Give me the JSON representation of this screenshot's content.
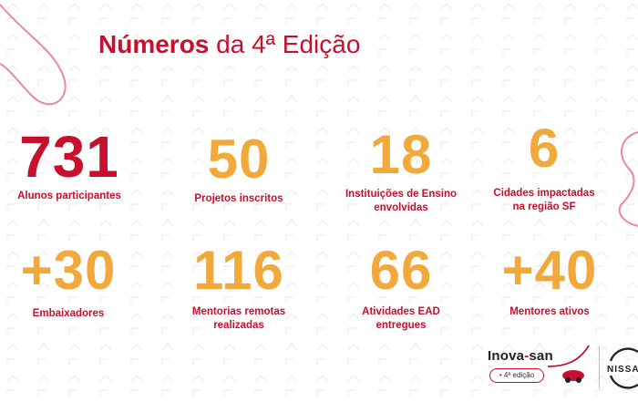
{
  "title": {
    "bold": "Números",
    "rest": " da 4ª Edição"
  },
  "stats": [
    {
      "value": "731",
      "label": "Alunos participantes"
    },
    {
      "value": "50",
      "label": "Projetos inscritos"
    },
    {
      "value": "18",
      "label_line1": "Instituições de Ensino",
      "label_line2": "envolvidas"
    },
    {
      "value": "6",
      "label_line1": "Cidades impactadas",
      "label_line2": "na região SF"
    },
    {
      "value": "+30",
      "label": "Embaixadores"
    },
    {
      "value": "116",
      "label_line1": "Mentorias remotas",
      "label_line2": "realizadas"
    },
    {
      "value": "66",
      "label_line1": "Atividades EAD",
      "label_line2": "entregues"
    },
    {
      "value": "+40",
      "label": "Mentores ativos"
    }
  ],
  "logo": {
    "inova_a": "Inova",
    "inova_dash": "-",
    "inova_b": "san",
    "edition": "4ª edição",
    "nissan": "NISSAN"
  },
  "colors": {
    "red": "#c8102e",
    "orange": "#f2a93b"
  }
}
